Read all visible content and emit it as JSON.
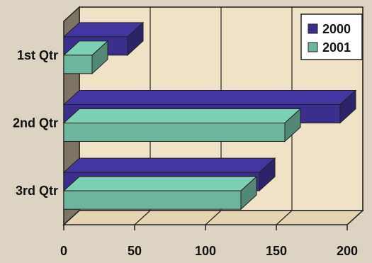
{
  "chart_data": {
    "type": "bar",
    "orientation": "horizontal",
    "three_d": true,
    "categories": [
      "1st Qtr",
      "2nd Qtr",
      "3rd Qtr"
    ],
    "series": [
      {
        "name": "2000",
        "values": [
          45,
          195,
          138
        ],
        "color": "#3a2f8c"
      },
      {
        "name": "2001",
        "values": [
          20,
          156,
          125
        ],
        "color": "#6db59c"
      }
    ],
    "xlim": [
      0,
      200
    ],
    "xticks": [
      0,
      50,
      100,
      150,
      200
    ],
    "title": "",
    "xlabel": "",
    "ylabel": "",
    "grid": true,
    "legend": "top-right"
  },
  "colors": {
    "wall": "#efe2c7",
    "floor": "#e6d3b2",
    "side_wall": "#7d7466",
    "grid": "#222222"
  }
}
